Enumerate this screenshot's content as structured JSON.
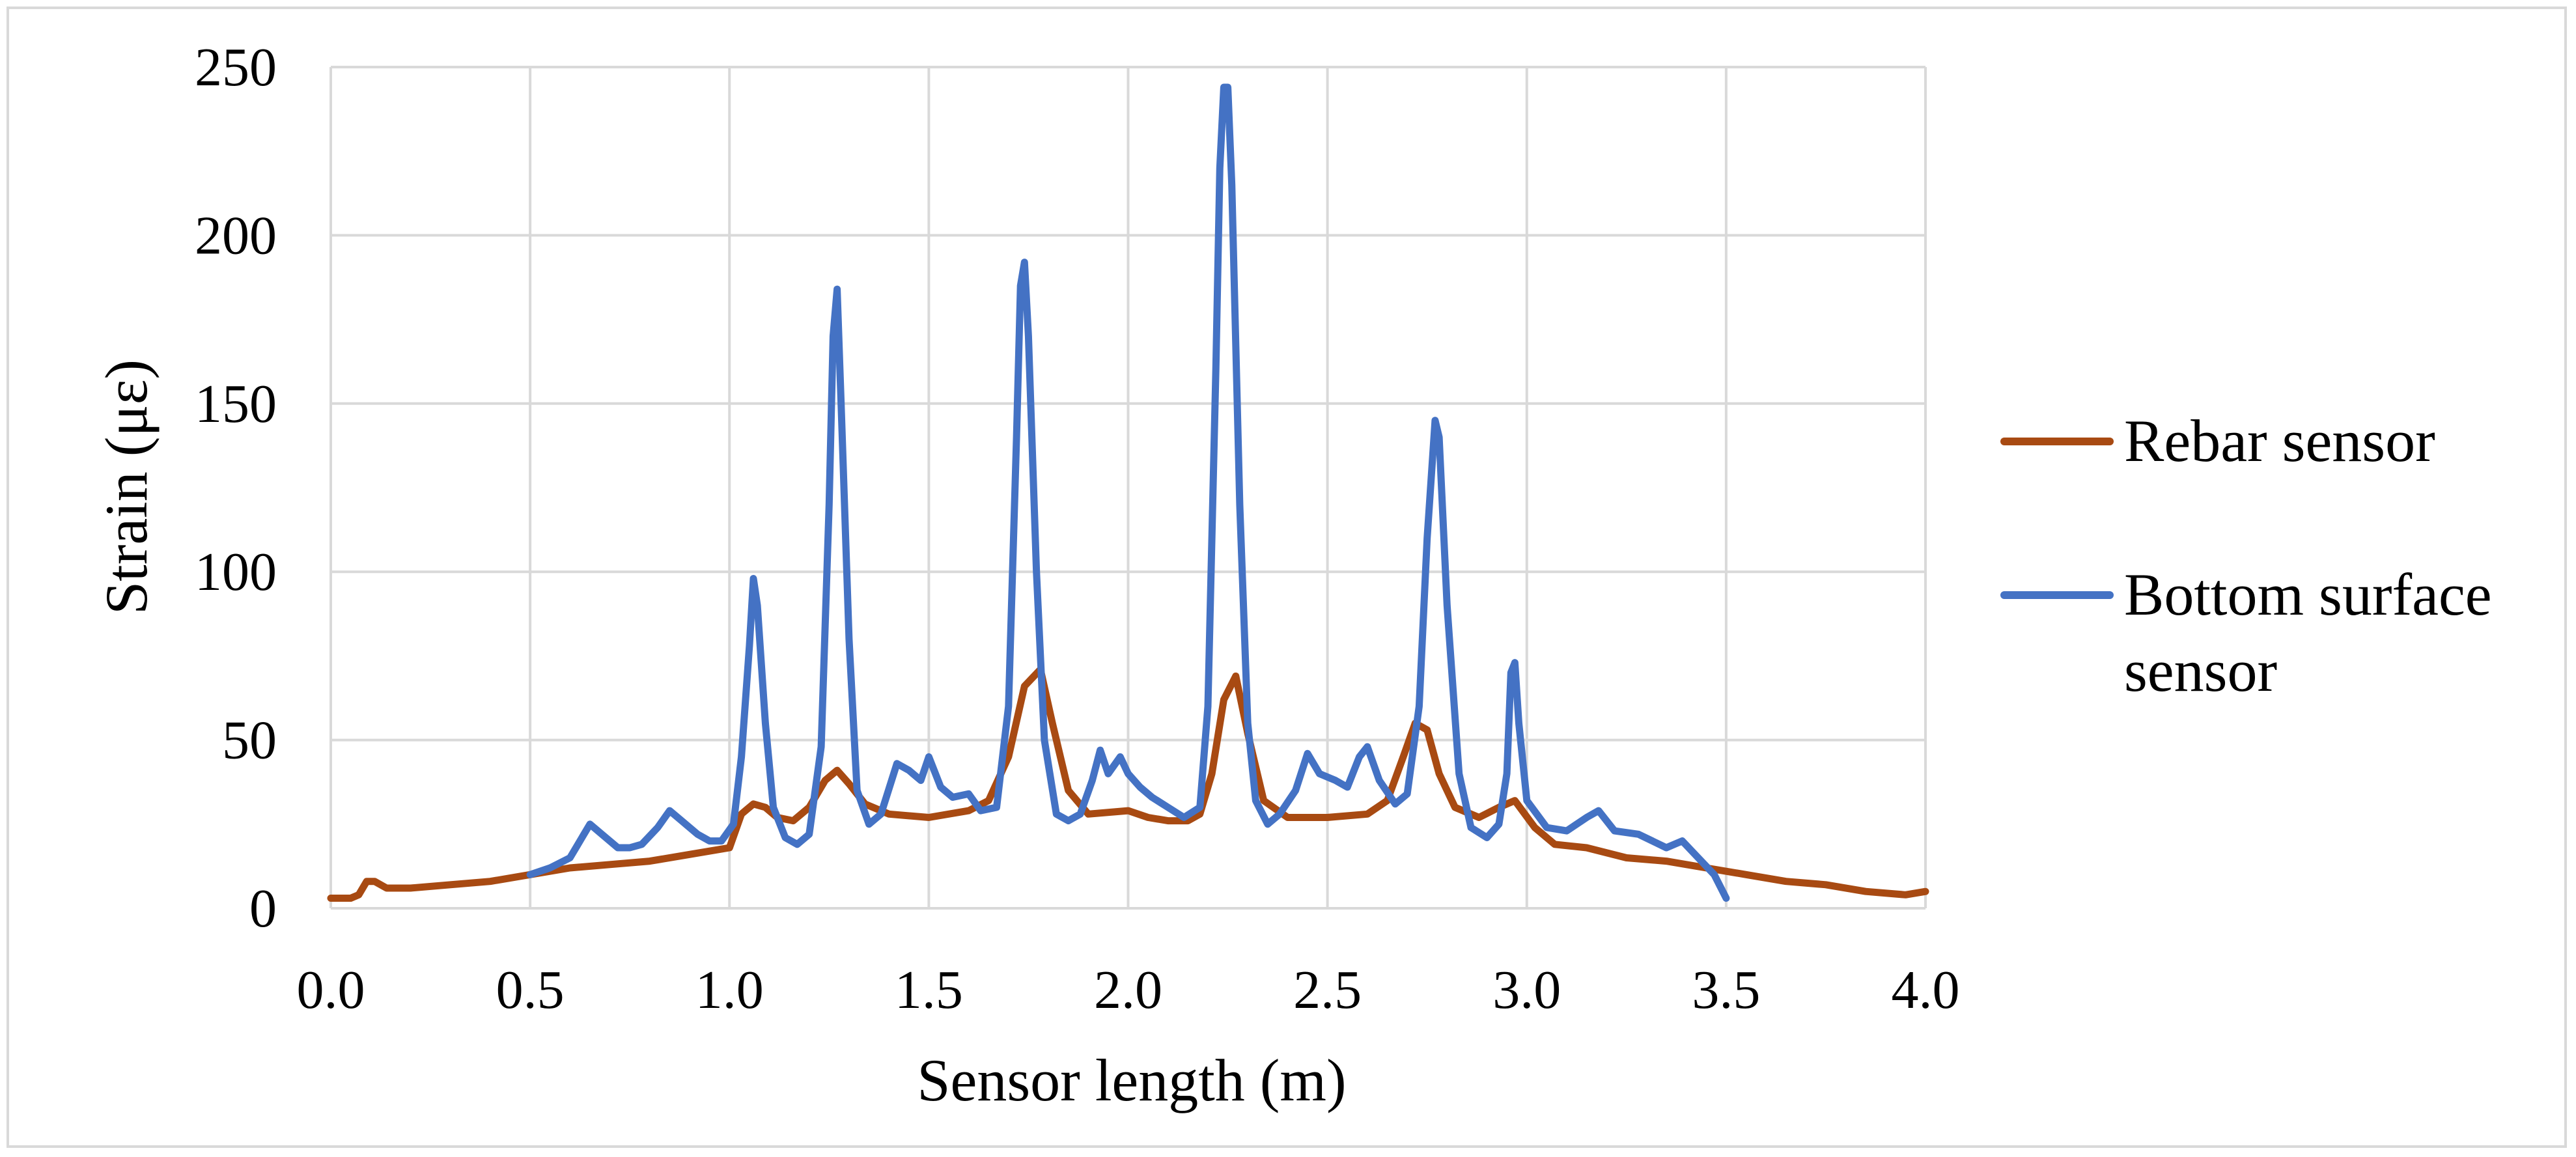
{
  "chart_data": {
    "type": "line",
    "title": "",
    "xlabel": "Sensor length (m)",
    "ylabel": "Strain (με)",
    "xlim": [
      0.0,
      4.0
    ],
    "ylim": [
      0,
      250
    ],
    "grid": true,
    "legend_position": "right",
    "x_tick_labels": [
      "0.0",
      "0.5",
      "1.0",
      "1.5",
      "2.0",
      "2.5",
      "3.0",
      "3.5",
      "4.0"
    ],
    "y_tick_labels": [
      "0",
      "50",
      "100",
      "150",
      "200",
      "250"
    ],
    "x_ticks": [
      0.0,
      0.5,
      1.0,
      1.5,
      2.0,
      2.5,
      3.0,
      3.5,
      4.0
    ],
    "y_ticks": [
      0,
      50,
      100,
      150,
      200,
      250
    ],
    "series": [
      {
        "name": "Rebar sensor",
        "color": "#A84A12",
        "points": [
          [
            0.0,
            3
          ],
          [
            0.05,
            3
          ],
          [
            0.07,
            4
          ],
          [
            0.09,
            8
          ],
          [
            0.11,
            8
          ],
          [
            0.14,
            6
          ],
          [
            0.2,
            6
          ],
          [
            0.3,
            7
          ],
          [
            0.4,
            8
          ],
          [
            0.5,
            10
          ],
          [
            0.6,
            12
          ],
          [
            0.7,
            13
          ],
          [
            0.8,
            14
          ],
          [
            0.9,
            16
          ],
          [
            1.0,
            18
          ],
          [
            1.03,
            28
          ],
          [
            1.06,
            31
          ],
          [
            1.09,
            30
          ],
          [
            1.12,
            27
          ],
          [
            1.16,
            26
          ],
          [
            1.2,
            30
          ],
          [
            1.24,
            38
          ],
          [
            1.27,
            41
          ],
          [
            1.3,
            37
          ],
          [
            1.34,
            31
          ],
          [
            1.4,
            28
          ],
          [
            1.5,
            27
          ],
          [
            1.6,
            29
          ],
          [
            1.65,
            32
          ],
          [
            1.7,
            45
          ],
          [
            1.74,
            66
          ],
          [
            1.78,
            71
          ],
          [
            1.81,
            55
          ],
          [
            1.85,
            35
          ],
          [
            1.9,
            28
          ],
          [
            2.0,
            29
          ],
          [
            2.05,
            27
          ],
          [
            2.1,
            26
          ],
          [
            2.15,
            26
          ],
          [
            2.18,
            28
          ],
          [
            2.21,
            40
          ],
          [
            2.24,
            62
          ],
          [
            2.27,
            69
          ],
          [
            2.3,
            52
          ],
          [
            2.34,
            32
          ],
          [
            2.4,
            27
          ],
          [
            2.5,
            27
          ],
          [
            2.6,
            28
          ],
          [
            2.65,
            32
          ],
          [
            2.69,
            45
          ],
          [
            2.72,
            55
          ],
          [
            2.75,
            53
          ],
          [
            2.78,
            40
          ],
          [
            2.82,
            30
          ],
          [
            2.88,
            27
          ],
          [
            2.93,
            30
          ],
          [
            2.97,
            32
          ],
          [
            3.02,
            24
          ],
          [
            3.07,
            19
          ],
          [
            3.15,
            18
          ],
          [
            3.25,
            15
          ],
          [
            3.35,
            14
          ],
          [
            3.45,
            12
          ],
          [
            3.55,
            10
          ],
          [
            3.65,
            8
          ],
          [
            3.75,
            7
          ],
          [
            3.85,
            5
          ],
          [
            3.95,
            4
          ],
          [
            4.0,
            5
          ]
        ]
      },
      {
        "name": "Bottom surface sensor",
        "color": "#4472C4",
        "points": [
          [
            0.5,
            10
          ],
          [
            0.55,
            12
          ],
          [
            0.6,
            15
          ],
          [
            0.63,
            21
          ],
          [
            0.65,
            25
          ],
          [
            0.68,
            22
          ],
          [
            0.72,
            18
          ],
          [
            0.75,
            18
          ],
          [
            0.78,
            19
          ],
          [
            0.82,
            24
          ],
          [
            0.85,
            29
          ],
          [
            0.88,
            26
          ],
          [
            0.92,
            22
          ],
          [
            0.95,
            20
          ],
          [
            0.98,
            20
          ],
          [
            1.01,
            25
          ],
          [
            1.03,
            45
          ],
          [
            1.05,
            78
          ],
          [
            1.06,
            98
          ],
          [
            1.07,
            90
          ],
          [
            1.09,
            55
          ],
          [
            1.11,
            30
          ],
          [
            1.14,
            21
          ],
          [
            1.17,
            19
          ],
          [
            1.2,
            22
          ],
          [
            1.23,
            48
          ],
          [
            1.25,
            120
          ],
          [
            1.26,
            170
          ],
          [
            1.27,
            184
          ],
          [
            1.28,
            150
          ],
          [
            1.3,
            80
          ],
          [
            1.32,
            35
          ],
          [
            1.35,
            25
          ],
          [
            1.38,
            28
          ],
          [
            1.42,
            43
          ],
          [
            1.45,
            41
          ],
          [
            1.48,
            38
          ],
          [
            1.5,
            45
          ],
          [
            1.53,
            36
          ],
          [
            1.56,
            33
          ],
          [
            1.6,
            34
          ],
          [
            1.63,
            29
          ],
          [
            1.67,
            30
          ],
          [
            1.7,
            60
          ],
          [
            1.72,
            140
          ],
          [
            1.73,
            185
          ],
          [
            1.74,
            192
          ],
          [
            1.75,
            170
          ],
          [
            1.77,
            100
          ],
          [
            1.79,
            50
          ],
          [
            1.82,
            28
          ],
          [
            1.85,
            26
          ],
          [
            1.88,
            28
          ],
          [
            1.91,
            38
          ],
          [
            1.93,
            47
          ],
          [
            1.95,
            40
          ],
          [
            1.98,
            45
          ],
          [
            2.0,
            40
          ],
          [
            2.03,
            36
          ],
          [
            2.06,
            33
          ],
          [
            2.1,
            30
          ],
          [
            2.14,
            27
          ],
          [
            2.18,
            30
          ],
          [
            2.2,
            60
          ],
          [
            2.22,
            160
          ],
          [
            2.23,
            220
          ],
          [
            2.24,
            244
          ],
          [
            2.25,
            244
          ],
          [
            2.26,
            215
          ],
          [
            2.28,
            120
          ],
          [
            2.3,
            55
          ],
          [
            2.32,
            32
          ],
          [
            2.35,
            25
          ],
          [
            2.38,
            28
          ],
          [
            2.42,
            35
          ],
          [
            2.45,
            46
          ],
          [
            2.48,
            40
          ],
          [
            2.52,
            38
          ],
          [
            2.55,
            36
          ],
          [
            2.58,
            45
          ],
          [
            2.6,
            48
          ],
          [
            2.63,
            38
          ],
          [
            2.67,
            31
          ],
          [
            2.7,
            34
          ],
          [
            2.73,
            60
          ],
          [
            2.75,
            110
          ],
          [
            2.77,
            145
          ],
          [
            2.78,
            140
          ],
          [
            2.8,
            90
          ],
          [
            2.83,
            40
          ],
          [
            2.86,
            24
          ],
          [
            2.9,
            21
          ],
          [
            2.93,
            25
          ],
          [
            2.95,
            40
          ],
          [
            2.96,
            70
          ],
          [
            2.97,
            73
          ],
          [
            2.98,
            55
          ],
          [
            3.0,
            32
          ],
          [
            3.05,
            24
          ],
          [
            3.1,
            23
          ],
          [
            3.15,
            27
          ],
          [
            3.18,
            29
          ],
          [
            3.22,
            23
          ],
          [
            3.28,
            22
          ],
          [
            3.35,
            18
          ],
          [
            3.39,
            20
          ],
          [
            3.43,
            15
          ],
          [
            3.47,
            10
          ],
          [
            3.5,
            3
          ]
        ]
      }
    ]
  }
}
